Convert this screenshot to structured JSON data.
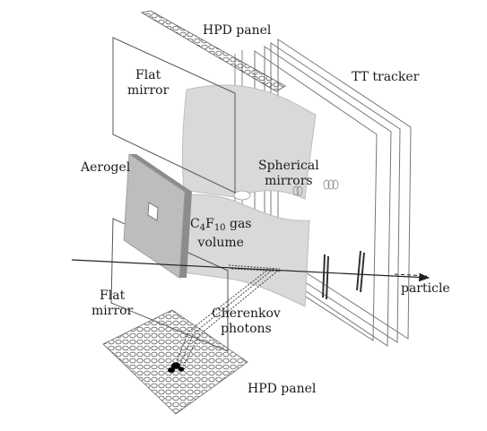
{
  "labels": {
    "hpd_panel_top": "HPD panel",
    "flat_mirror_top": [
      "Flat",
      "mirror"
    ],
    "tt_tracker": "TT tracker",
    "aerogel": "Aerogel",
    "spherical_mirrors": [
      "Spherical",
      "mirrors"
    ],
    "gas_volume": {
      "c": "C",
      "c_sub": "4",
      "f": "F",
      "f_sub": "10",
      "suffix": " gas",
      "line2": "volume"
    },
    "particle": "particle",
    "flat_mirror_bottom": [
      "Flat",
      "mirror"
    ],
    "cherenkov": [
      "Cherenkov",
      "photons"
    ],
    "hpd_panel_bottom": "HPD panel"
  },
  "colors": {
    "line": "#3a3a3a",
    "mirror_fill": "#d9d9d9",
    "aerogel_face": "#bdbdbd",
    "aerogel_side": "#8c8c8c",
    "panel_stroke": "#555555",
    "hit": "#000000"
  }
}
